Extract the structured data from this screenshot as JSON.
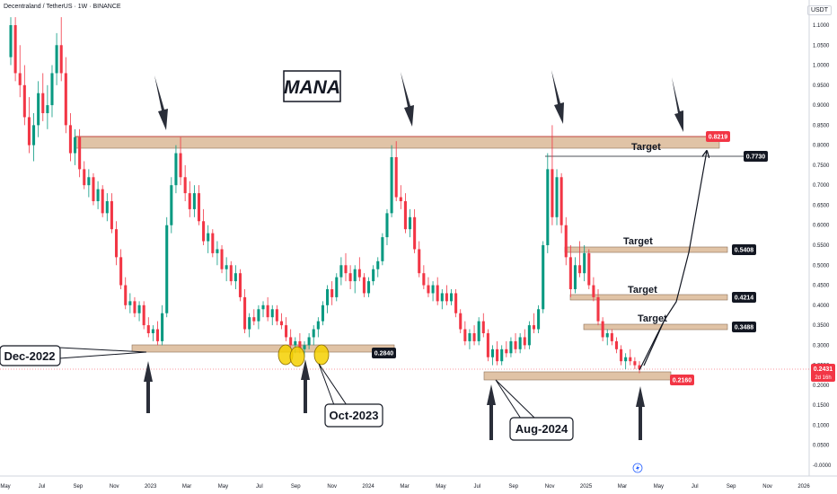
{
  "header": {
    "symbol": "Decentraland / TetherUS · 1W · BINANCE",
    "currency": "USDT"
  },
  "chart_data": {
    "type": "candlestick",
    "title": "MANA",
    "yaxis_labels": [
      "1.1000",
      "1.0500",
      "1.0000",
      "0.9500",
      "0.9000",
      "0.8500",
      "0.8000",
      "0.7500",
      "0.7000",
      "0.6500",
      "0.6000",
      "0.5500",
      "0.5000",
      "0.4500",
      "0.4000",
      "0.3500",
      "0.3000",
      "0.2500",
      "0.2000",
      "0.1500",
      "0.1000",
      "0.0500",
      "-0.0000"
    ],
    "xaxis_labels": [
      "May",
      "Jul",
      "Sep",
      "Nov",
      "2023",
      "Mar",
      "May",
      "Jul",
      "Sep",
      "Nov",
      "2024",
      "Mar",
      "May",
      "Jul",
      "Sep",
      "Nov",
      "2025",
      "Mar",
      "May",
      "Jul",
      "Sep",
      "Nov",
      "2026"
    ],
    "ylim": [
      -0.0,
      1.12
    ],
    "price_labels": [
      {
        "value": 0.8219,
        "text": "0.8219",
        "color": "#f23645"
      },
      {
        "value": 0.773,
        "text": "0.7730",
        "color": "#131722"
      },
      {
        "value": 0.5408,
        "text": "0.5408",
        "color": "#131722"
      },
      {
        "value": 0.4214,
        "text": "0.4214",
        "color": "#131722"
      },
      {
        "value": 0.3488,
        "text": "0.3488",
        "color": "#131722"
      },
      {
        "value": 0.284,
        "text": "0.2840",
        "color": "#131722"
      },
      {
        "value": 0.216,
        "text": "0.2160",
        "color": "#f23645"
      }
    ],
    "current_price": {
      "value": 0.2431,
      "text": "0.2431",
      "sub": "2d 16h",
      "color": "#f23645"
    },
    "targets": [
      {
        "label": "Target",
        "value": 0.773
      },
      {
        "label": "Target",
        "value": 0.5408
      },
      {
        "label": "Target",
        "value": 0.4214
      },
      {
        "label": "Target",
        "value": 0.3488
      }
    ],
    "annotations": [
      {
        "text": "Dec-2022"
      },
      {
        "text": "Oct-2023"
      },
      {
        "text": "Aug-2024"
      }
    ],
    "candles": [
      [
        1.02,
        1.12,
        1.0,
        1.1
      ],
      [
        1.1,
        1.12,
        0.96,
        0.98
      ],
      [
        0.98,
        1.05,
        0.92,
        0.95
      ],
      [
        0.95,
        1.0,
        0.85,
        0.87
      ],
      [
        0.87,
        0.92,
        0.78,
        0.8
      ],
      [
        0.8,
        0.88,
        0.76,
        0.85
      ],
      [
        0.85,
        0.96,
        0.82,
        0.93
      ],
      [
        0.93,
        0.98,
        0.86,
        0.88
      ],
      [
        0.88,
        0.95,
        0.84,
        0.9
      ],
      [
        0.9,
        1.0,
        0.87,
        0.98
      ],
      [
        0.98,
        1.08,
        0.95,
        1.05
      ],
      [
        1.05,
        1.12,
        0.96,
        0.98
      ],
      [
        0.98,
        1.02,
        0.83,
        0.85
      ],
      [
        0.85,
        0.88,
        0.76,
        0.78
      ],
      [
        0.78,
        0.84,
        0.75,
        0.82
      ],
      [
        0.82,
        0.84,
        0.72,
        0.74
      ],
      [
        0.74,
        0.76,
        0.69,
        0.7
      ],
      [
        0.7,
        0.74,
        0.67,
        0.72
      ],
      [
        0.72,
        0.73,
        0.65,
        0.66
      ],
      [
        0.66,
        0.71,
        0.64,
        0.69
      ],
      [
        0.69,
        0.7,
        0.62,
        0.63
      ],
      [
        0.63,
        0.68,
        0.61,
        0.66
      ],
      [
        0.66,
        0.68,
        0.58,
        0.59
      ],
      [
        0.59,
        0.61,
        0.5,
        0.52
      ],
      [
        0.52,
        0.54,
        0.44,
        0.45
      ],
      [
        0.45,
        0.47,
        0.39,
        0.4
      ],
      [
        0.4,
        0.43,
        0.38,
        0.41
      ],
      [
        0.41,
        0.42,
        0.37,
        0.38
      ],
      [
        0.38,
        0.41,
        0.36,
        0.4
      ],
      [
        0.4,
        0.41,
        0.34,
        0.35
      ],
      [
        0.35,
        0.37,
        0.32,
        0.33
      ],
      [
        0.33,
        0.35,
        0.31,
        0.34
      ],
      [
        0.34,
        0.36,
        0.3,
        0.31
      ],
      [
        0.31,
        0.4,
        0.3,
        0.38
      ],
      [
        0.38,
        0.62,
        0.37,
        0.6
      ],
      [
        0.6,
        0.72,
        0.58,
        0.7
      ],
      [
        0.7,
        0.8,
        0.68,
        0.78
      ],
      [
        0.78,
        0.82,
        0.7,
        0.72
      ],
      [
        0.72,
        0.75,
        0.66,
        0.68
      ],
      [
        0.68,
        0.71,
        0.62,
        0.64
      ],
      [
        0.64,
        0.7,
        0.62,
        0.68
      ],
      [
        0.68,
        0.7,
        0.6,
        0.61
      ],
      [
        0.61,
        0.64,
        0.55,
        0.56
      ],
      [
        0.56,
        0.6,
        0.53,
        0.58
      ],
      [
        0.58,
        0.59,
        0.52,
        0.53
      ],
      [
        0.53,
        0.56,
        0.5,
        0.54
      ],
      [
        0.54,
        0.55,
        0.48,
        0.49
      ],
      [
        0.49,
        0.52,
        0.46,
        0.5
      ],
      [
        0.5,
        0.51,
        0.45,
        0.46
      ],
      [
        0.46,
        0.5,
        0.44,
        0.48
      ],
      [
        0.48,
        0.49,
        0.41,
        0.42
      ],
      [
        0.42,
        0.44,
        0.33,
        0.34
      ],
      [
        0.34,
        0.38,
        0.32,
        0.37
      ],
      [
        0.37,
        0.39,
        0.35,
        0.36
      ],
      [
        0.36,
        0.4,
        0.34,
        0.39
      ],
      [
        0.39,
        0.41,
        0.37,
        0.4
      ],
      [
        0.4,
        0.42,
        0.36,
        0.37
      ],
      [
        0.37,
        0.4,
        0.35,
        0.39
      ],
      [
        0.39,
        0.4,
        0.35,
        0.36
      ],
      [
        0.36,
        0.38,
        0.34,
        0.35
      ],
      [
        0.35,
        0.37,
        0.31,
        0.32
      ],
      [
        0.32,
        0.34,
        0.29,
        0.3
      ],
      [
        0.3,
        0.32,
        0.28,
        0.31
      ],
      [
        0.31,
        0.33,
        0.28,
        0.29
      ],
      [
        0.29,
        0.31,
        0.27,
        0.3
      ],
      [
        0.3,
        0.33,
        0.29,
        0.32
      ],
      [
        0.32,
        0.35,
        0.3,
        0.34
      ],
      [
        0.34,
        0.37,
        0.32,
        0.36
      ],
      [
        0.36,
        0.41,
        0.35,
        0.4
      ],
      [
        0.4,
        0.45,
        0.38,
        0.44
      ],
      [
        0.44,
        0.46,
        0.4,
        0.42
      ],
      [
        0.42,
        0.48,
        0.41,
        0.47
      ],
      [
        0.47,
        0.52,
        0.45,
        0.5
      ],
      [
        0.5,
        0.53,
        0.46,
        0.48
      ],
      [
        0.48,
        0.5,
        0.44,
        0.46
      ],
      [
        0.46,
        0.5,
        0.43,
        0.49
      ],
      [
        0.49,
        0.52,
        0.46,
        0.47
      ],
      [
        0.47,
        0.48,
        0.42,
        0.43
      ],
      [
        0.43,
        0.47,
        0.42,
        0.46
      ],
      [
        0.46,
        0.5,
        0.45,
        0.49
      ],
      [
        0.49,
        0.52,
        0.47,
        0.51
      ],
      [
        0.51,
        0.58,
        0.5,
        0.57
      ],
      [
        0.57,
        0.64,
        0.55,
        0.63
      ],
      [
        0.63,
        0.8,
        0.62,
        0.77
      ],
      [
        0.77,
        0.81,
        0.66,
        0.67
      ],
      [
        0.67,
        0.7,
        0.64,
        0.66
      ],
      [
        0.66,
        0.68,
        0.58,
        0.59
      ],
      [
        0.59,
        0.64,
        0.57,
        0.62
      ],
      [
        0.62,
        0.64,
        0.53,
        0.54
      ],
      [
        0.54,
        0.56,
        0.47,
        0.48
      ],
      [
        0.48,
        0.5,
        0.44,
        0.45
      ],
      [
        0.45,
        0.47,
        0.42,
        0.43
      ],
      [
        0.43,
        0.46,
        0.41,
        0.45
      ],
      [
        0.45,
        0.47,
        0.4,
        0.41
      ],
      [
        0.41,
        0.44,
        0.39,
        0.43
      ],
      [
        0.43,
        0.45,
        0.4,
        0.41
      ],
      [
        0.41,
        0.44,
        0.4,
        0.43
      ],
      [
        0.43,
        0.44,
        0.37,
        0.38
      ],
      [
        0.38,
        0.39,
        0.33,
        0.34
      ],
      [
        0.34,
        0.36,
        0.3,
        0.31
      ],
      [
        0.31,
        0.34,
        0.29,
        0.33
      ],
      [
        0.33,
        0.35,
        0.3,
        0.31
      ],
      [
        0.31,
        0.37,
        0.3,
        0.36
      ],
      [
        0.36,
        0.38,
        0.32,
        0.33
      ],
      [
        0.33,
        0.34,
        0.26,
        0.27
      ],
      [
        0.27,
        0.3,
        0.25,
        0.29
      ],
      [
        0.29,
        0.31,
        0.25,
        0.26
      ],
      [
        0.26,
        0.3,
        0.25,
        0.29
      ],
      [
        0.29,
        0.31,
        0.27,
        0.28
      ],
      [
        0.28,
        0.32,
        0.27,
        0.31
      ],
      [
        0.31,
        0.33,
        0.28,
        0.29
      ],
      [
        0.29,
        0.33,
        0.28,
        0.32
      ],
      [
        0.32,
        0.34,
        0.29,
        0.3
      ],
      [
        0.3,
        0.36,
        0.29,
        0.35
      ],
      [
        0.35,
        0.38,
        0.33,
        0.34
      ],
      [
        0.34,
        0.4,
        0.33,
        0.39
      ],
      [
        0.39,
        0.56,
        0.38,
        0.55
      ],
      [
        0.55,
        0.78,
        0.53,
        0.74
      ],
      [
        0.74,
        0.85,
        0.6,
        0.62
      ],
      [
        0.62,
        0.74,
        0.6,
        0.72
      ],
      [
        0.72,
        0.73,
        0.58,
        0.6
      ],
      [
        0.6,
        0.62,
        0.5,
        0.52
      ],
      [
        0.52,
        0.55,
        0.42,
        0.44
      ],
      [
        0.44,
        0.52,
        0.43,
        0.5
      ],
      [
        0.5,
        0.56,
        0.47,
        0.48
      ],
      [
        0.48,
        0.55,
        0.46,
        0.53
      ],
      [
        0.53,
        0.54,
        0.44,
        0.45
      ],
      [
        0.45,
        0.47,
        0.41,
        0.42
      ],
      [
        0.42,
        0.44,
        0.35,
        0.36
      ],
      [
        0.36,
        0.37,
        0.31,
        0.32
      ],
      [
        0.32,
        0.34,
        0.3,
        0.33
      ],
      [
        0.33,
        0.34,
        0.3,
        0.31
      ],
      [
        0.31,
        0.32,
        0.28,
        0.29
      ],
      [
        0.29,
        0.3,
        0.25,
        0.26
      ],
      [
        0.26,
        0.28,
        0.24,
        0.27
      ],
      [
        0.27,
        0.29,
        0.25,
        0.26
      ],
      [
        0.26,
        0.27,
        0.24,
        0.25
      ],
      [
        0.25,
        0.26,
        0.23,
        0.24
      ]
    ]
  }
}
